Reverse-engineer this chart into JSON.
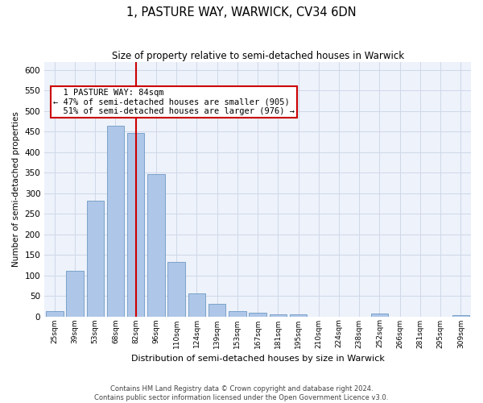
{
  "title": "1, PASTURE WAY, WARWICK, CV34 6DN",
  "subtitle": "Size of property relative to semi-detached houses in Warwick",
  "xlabel": "Distribution of semi-detached houses by size in Warwick",
  "ylabel": "Number of semi-detached properties",
  "categories": [
    "25sqm",
    "39sqm",
    "53sqm",
    "68sqm",
    "82sqm",
    "96sqm",
    "110sqm",
    "124sqm",
    "139sqm",
    "153sqm",
    "167sqm",
    "181sqm",
    "195sqm",
    "210sqm",
    "224sqm",
    "238sqm",
    "252sqm",
    "266sqm",
    "281sqm",
    "295sqm",
    "309sqm"
  ],
  "values": [
    12,
    110,
    281,
    465,
    447,
    346,
    132,
    55,
    30,
    13,
    8,
    5,
    5,
    0,
    0,
    0,
    6,
    0,
    0,
    0,
    3
  ],
  "bar_color": "#aec6e8",
  "bar_edge_color": "#5b8db8",
  "grid_color": "#d0d8e8",
  "bg_color": "#edf2fb",
  "property_label": "1 PASTURE WAY: 84sqm",
  "pct_smaller": 47,
  "count_smaller": 905,
  "pct_larger": 51,
  "count_larger": 976,
  "vline_bin_index": 4,
  "annotation_box_color": "#cc0000",
  "vline_color": "#cc0000",
  "footnote1": "Contains HM Land Registry data © Crown copyright and database right 2024.",
  "footnote2": "Contains public sector information licensed under the Open Government Licence v3.0.",
  "ylim": [
    0,
    620
  ],
  "yticks": [
    0,
    50,
    100,
    150,
    200,
    250,
    300,
    350,
    400,
    450,
    500,
    550,
    600
  ]
}
